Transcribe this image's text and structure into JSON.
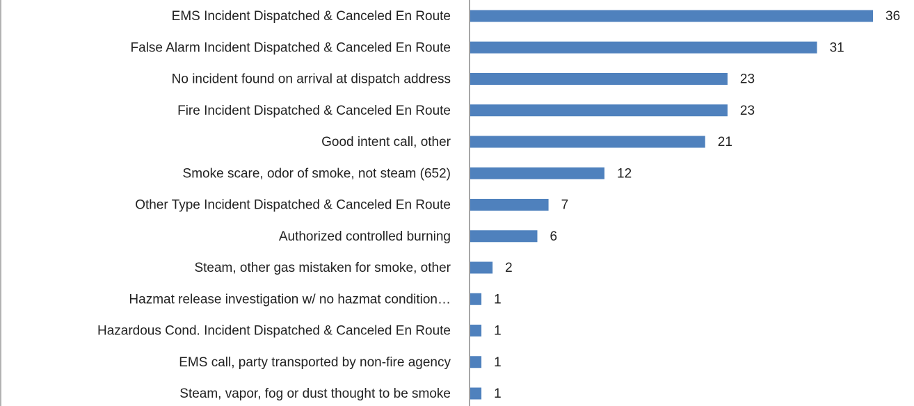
{
  "chart_data": {
    "type": "bar",
    "orientation": "horizontal",
    "categories": [
      "EMS Incident Dispatched & Canceled En Route",
      "False Alarm Incident Dispatched & Canceled En Route",
      "No incident found on arrival at dispatch address",
      "Fire Incident Dispatched & Canceled En Route",
      "Good intent call, other",
      "Smoke scare, odor of smoke, not steam (652)",
      "Other Type Incident Dispatched & Canceled En Route",
      "Authorized controlled burning",
      "Steam, other gas mistaken for smoke, other",
      "Hazmat release investigation w/ no hazmat condition…",
      "Hazardous Cond. Incident Dispatched & Canceled En Route",
      "EMS call, party transported by non-fire agency",
      "Steam, vapor, fog or dust thought to be smoke"
    ],
    "values": [
      36,
      31,
      23,
      23,
      21,
      12,
      7,
      6,
      2,
      1,
      1,
      1,
      1
    ],
    "color": "#4f81bd"
  }
}
